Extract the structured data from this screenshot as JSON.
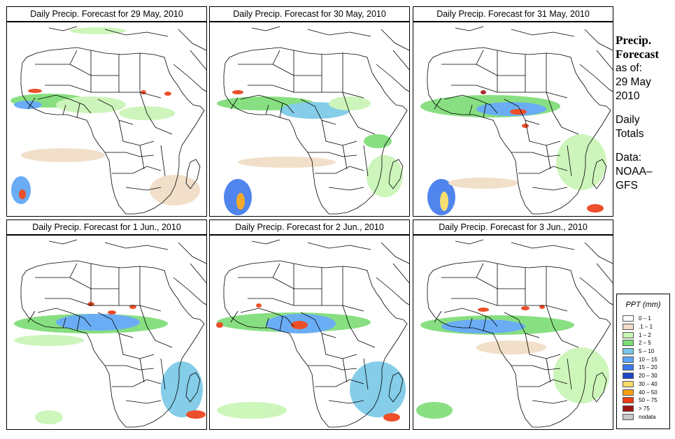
{
  "panels": [
    {
      "title": "Daily Precip. Forecast for  29 May, 2010"
    },
    {
      "title": "Daily Precip. Forecast for  30 May, 2010"
    },
    {
      "title": "Daily Precip. Forecast for  31 May, 2010"
    },
    {
      "title": "Daily Precip. Forecast for  1 Jun., 2010"
    },
    {
      "title": "Daily Precip. Forecast for  2 Jun., 2010"
    },
    {
      "title": "Daily Precip. Forecast for  3 Jun., 2010"
    }
  ],
  "side": {
    "precip": "Precip.",
    "forecast": "Forecast",
    "as_of": "as of:",
    "date_line1": "29 May",
    "date_line2": "2010",
    "daily": "Daily",
    "totals": "Totals",
    "data_label": "Data:",
    "data_src1": "NOAA–",
    "data_src2": "GFS"
  },
  "legend": {
    "title": "PPT (mm)",
    "items": [
      {
        "label": "0 – 1",
        "color": "#ffffff"
      },
      {
        "label": ".1 – 1",
        "color": "#f0dcc4"
      },
      {
        "label": "1 – 2",
        "color": "#c8f5b4"
      },
      {
        "label": "2 – 5",
        "color": "#7cdc74"
      },
      {
        "label": "5 – 10",
        "color": "#78c8e6"
      },
      {
        "label": "10 – 15",
        "color": "#5aa5f5"
      },
      {
        "label": "15 – 20",
        "color": "#3c78eb"
      },
      {
        "label": "20 – 30",
        "color": "#1e46c8"
      },
      {
        "label": "30 – 40",
        "color": "#f5dc64"
      },
      {
        "label": "40 – 50",
        "color": "#f5a014"
      },
      {
        "label": "50 – 75",
        "color": "#eb3c14"
      },
      {
        "label": "> 75",
        "color": "#a01414"
      },
      {
        "label": "nodata",
        "color": "#c8c8c8"
      }
    ]
  }
}
